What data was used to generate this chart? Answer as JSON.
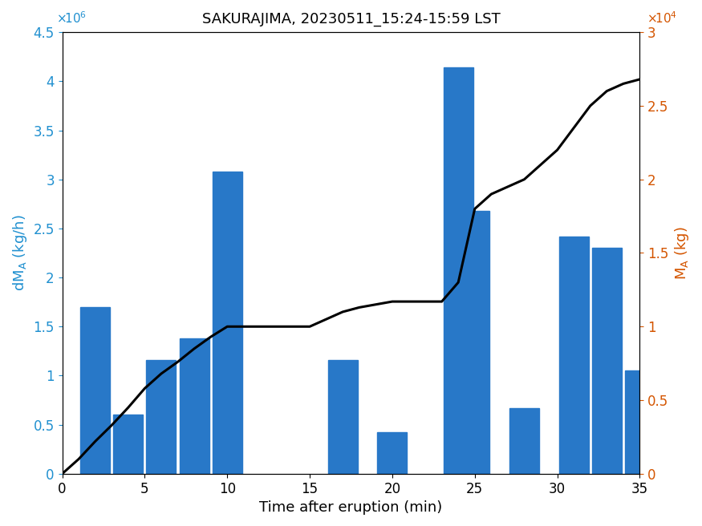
{
  "title": "SAKURAJIMA, 20230511_15:24-15:59 LST",
  "xlabel": "Time after eruption (min)",
  "ylabel_left": "dM$_A$ (kg/h)",
  "ylabel_right": "M$_A$ (kg)",
  "bar_centers": [
    2,
    4,
    6,
    8,
    10,
    17,
    20,
    24,
    25,
    28,
    31,
    33,
    35
  ],
  "bar_heights": [
    1700000.0,
    600000.0,
    1160000.0,
    1380000.0,
    3080000.0,
    1160000.0,
    420000.0,
    4140000.0,
    2680000.0,
    670000.0,
    2420000.0,
    2300000.0,
    1050000.0
  ],
  "bar_width": 1.8,
  "bar_color": "#2878C8",
  "ylim_left": [
    0,
    4500000.0
  ],
  "ylim_right": [
    0,
    30000.0
  ],
  "xlim": [
    0,
    35
  ],
  "xticks": [
    0,
    5,
    10,
    15,
    20,
    25,
    30,
    35
  ],
  "yticks_left": [
    0,
    500000.0,
    1000000.0,
    1500000.0,
    2000000.0,
    2500000.0,
    3000000.0,
    3500000.0,
    4000000.0,
    4500000.0
  ],
  "ytick_labels_left": [
    "0",
    "0.5",
    "1",
    "1.5",
    "2",
    "2.5",
    "3",
    "3.5",
    "4",
    "4.5"
  ],
  "yticks_right": [
    0,
    5000.0,
    10000.0,
    15000.0,
    20000.0,
    25000.0,
    30000.0
  ],
  "ytick_labels_right": [
    "0",
    "0.5",
    "1",
    "1.5",
    "2",
    "2.5",
    "3"
  ],
  "line_x": [
    0,
    1,
    2,
    3,
    4,
    5,
    6,
    7,
    8,
    9,
    10,
    11,
    12,
    13,
    14,
    15,
    16,
    17,
    18,
    19,
    20,
    21,
    22,
    23,
    24,
    25,
    26,
    27,
    28,
    29,
    30,
    31,
    32,
    33,
    34,
    35
  ],
  "line_y": [
    0,
    1000.0,
    2200.0,
    3300.0,
    4500.0,
    5800.0,
    6800.0,
    7600.0,
    8500.0,
    9300.0,
    10000.0,
    10000.0,
    10000.0,
    10000.0,
    10000.0,
    10000.0,
    10500.0,
    11000.0,
    11300.0,
    11500.0,
    11700.0,
    11700.0,
    11700.0,
    11700.0,
    13000.0,
    18000.0,
    19000.0,
    19500.0,
    20000.0,
    21000.0,
    22000.0,
    23500.0,
    25000.0,
    26000.0,
    26500.0,
    26800.0
  ],
  "line_color": "#000000",
  "line_width": 2.2,
  "left_label_color": "#2090D0",
  "right_label_color": "#D45500",
  "title_fontsize": 13,
  "axis_fontsize": 13,
  "tick_fontsize": 12
}
